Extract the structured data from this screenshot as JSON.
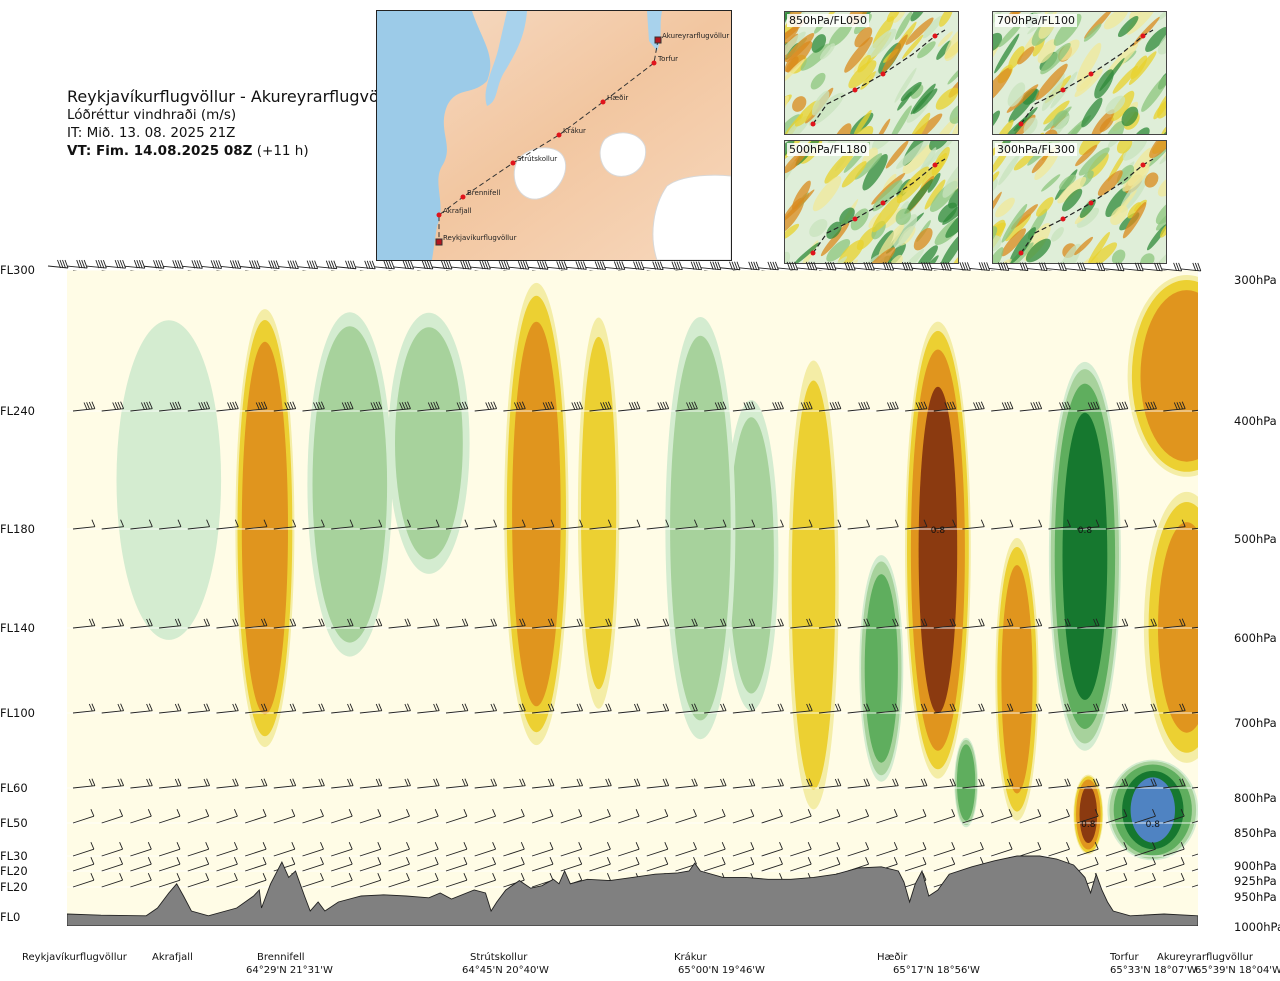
{
  "header": {
    "title": "Reykjavíkurflugvöllur - Akureyrarflugvöllur",
    "subtitle": "Lóðréttur vindhraði (m/s)",
    "init_time": "IT: Mið. 13. 08. 2025 21Z",
    "valid_prefix": "VT: Fim. 14.08.2025 08Z",
    "valid_suffix": " (+11 h)"
  },
  "route_map": {
    "waypoints": [
      "Akureyrarflugvöllur",
      "Torfur",
      "Hæðir",
      "Krákur",
      "Strútskollur",
      "Brennifell",
      "Akrafjall",
      "Reykjavíkurflugvöllur"
    ]
  },
  "mini_maps": [
    {
      "label": "850hPa/FL050"
    },
    {
      "label": "700hPa/FL100"
    },
    {
      "label": "500hPa/FL180"
    },
    {
      "label": "300hPa/FL300"
    }
  ],
  "colors": {
    "strong_down": "#8b3a10",
    "moderate_down": "#e0951e",
    "weak_down": "#ecd032",
    "slight_down": "#f4eda6",
    "neutral": "#fffce6",
    "slight_up": "#d4ecd0",
    "weak_up": "#a7d29c",
    "moderate_up": "#5fae5e",
    "strong_up": "#16782f",
    "very_strong_up": "#4f83c2",
    "terrain": "#808080"
  },
  "chart_data": {
    "type": "heatmap",
    "title": "Reykjavíkurflugvöllur - Akureyrarflugvöllur",
    "variable": "Lóðréttur vindhraði (m/s)",
    "y_axis_left": {
      "ticks": [
        "FL300",
        "FL240",
        "FL180",
        "FL140",
        "FL100",
        "FL60",
        "FL50",
        "FL30",
        "FL20",
        "FL20",
        "FL0"
      ]
    },
    "y_axis_right": {
      "ticks": [
        "300hPa",
        "400hPa",
        "500hPa",
        "600hPa",
        "700hPa",
        "800hPa",
        "850hPa",
        "900hPa",
        "925hPa",
        "950hPa",
        "1000hPa"
      ]
    },
    "x_axis": {
      "locations": [
        {
          "name": "Reykjavíkurflugvöllur",
          "coord": ""
        },
        {
          "name": "Akrafjall",
          "coord": ""
        },
        {
          "name": "Brennifell",
          "coord": "64°29'N 21°31'W"
        },
        {
          "name": "Strútskollur",
          "coord": "64°45'N 20°40'W"
        },
        {
          "name": "Krákur",
          "coord": "65°00'N 19°46'W"
        },
        {
          "name": "Hæðir",
          "coord": "65°17'N 18°56'W"
        },
        {
          "name": "Torfur",
          "coord": "65°33'N 18°07'W"
        },
        {
          "name": "Akureyrarflugvöllur",
          "coord": "65°39'N 18°04'W"
        }
      ]
    },
    "distance_range": [
      0,
      1
    ],
    "pressure_range_hPa": [
      300,
      1000
    ],
    "contour_levels": [
      -0.8,
      -0.4,
      -0.2,
      -0.1,
      0.1,
      0.2,
      0.4,
      0.8,
      1.2
    ],
    "annotations": [
      "0.8",
      "0.8",
      "0.8",
      "0.8"
    ],
    "features": [
      {
        "sign": -1,
        "x": 0.175,
        "ptop": 320,
        "pbot": 760,
        "width": 0.02,
        "peak": 0.7
      },
      {
        "sign": 1,
        "x": 0.25,
        "ptop": 320,
        "pbot": 650,
        "width": 0.03,
        "peak": 0.35
      },
      {
        "sign": 1,
        "x": 0.09,
        "ptop": 320,
        "pbot": 640,
        "width": 0.04,
        "peak": 0.12
      },
      {
        "sign": 1,
        "x": 0.32,
        "ptop": 320,
        "pbot": 560,
        "width": 0.03,
        "peak": 0.2
      },
      {
        "sign": -1,
        "x": 0.415,
        "ptop": 300,
        "pbot": 760,
        "width": 0.022,
        "peak": 0.6
      },
      {
        "sign": -1,
        "x": 0.47,
        "ptop": 320,
        "pbot": 720,
        "width": 0.015,
        "peak": 0.25
      },
      {
        "sign": 1,
        "x": 0.56,
        "ptop": 320,
        "pbot": 760,
        "width": 0.025,
        "peak": 0.3
      },
      {
        "sign": -1,
        "x": 0.66,
        "ptop": 350,
        "pbot": 860,
        "width": 0.018,
        "peak": 0.3
      },
      {
        "sign": 1,
        "x": 0.605,
        "ptop": 380,
        "pbot": 720,
        "width": 0.02,
        "peak": 0.2
      },
      {
        "sign": 1,
        "x": 0.72,
        "ptop": 520,
        "pbot": 800,
        "width": 0.015,
        "peak": 0.6
      },
      {
        "sign": -1,
        "x": 0.77,
        "ptop": 330,
        "pbot": 800,
        "width": 0.022,
        "peak": 0.9
      },
      {
        "sign": 1,
        "x": 0.795,
        "ptop": 730,
        "pbot": 860,
        "width": 0.008,
        "peak": 0.7
      },
      {
        "sign": -1,
        "x": 0.84,
        "ptop": 500,
        "pbot": 860,
        "width": 0.015,
        "peak": 0.5
      },
      {
        "sign": 1,
        "x": 0.9,
        "ptop": 360,
        "pbot": 760,
        "width": 0.024,
        "peak": 1.0
      },
      {
        "sign": -1,
        "x": 0.903,
        "ptop": 780,
        "pbot": 900,
        "width": 0.01,
        "peak": 0.9
      },
      {
        "sign": 1,
        "x": 0.96,
        "ptop": 760,
        "pbot": 910,
        "width": 0.03,
        "peak": 1.2
      },
      {
        "sign": -1,
        "x": 0.99,
        "ptop": 300,
        "pbot": 460,
        "width": 0.04,
        "peak": 0.7
      },
      {
        "sign": -1,
        "x": 0.99,
        "ptop": 460,
        "pbot": 780,
        "width": 0.03,
        "peak": 0.4
      }
    ],
    "terrain_profile": [
      [
        0.0,
        995
      ],
      [
        0.03,
        997
      ],
      [
        0.07,
        998
      ],
      [
        0.08,
        985
      ],
      [
        0.09,
        960
      ],
      [
        0.097,
        945
      ],
      [
        0.103,
        965
      ],
      [
        0.11,
        990
      ],
      [
        0.125,
        998
      ],
      [
        0.15,
        985
      ],
      [
        0.165,
        965
      ],
      [
        0.17,
        955
      ],
      [
        0.172,
        985
      ],
      [
        0.18,
        945
      ],
      [
        0.19,
        910
      ],
      [
        0.196,
        935
      ],
      [
        0.202,
        925
      ],
      [
        0.21,
        965
      ],
      [
        0.215,
        990
      ],
      [
        0.222,
        975
      ],
      [
        0.228,
        990
      ],
      [
        0.24,
        975
      ],
      [
        0.26,
        965
      ],
      [
        0.28,
        963
      ],
      [
        0.3,
        965
      ],
      [
        0.32,
        968
      ],
      [
        0.33,
        960
      ],
      [
        0.34,
        970
      ],
      [
        0.36,
        955
      ],
      [
        0.37,
        960
      ],
      [
        0.375,
        990
      ],
      [
        0.38,
        975
      ],
      [
        0.388,
        955
      ],
      [
        0.4,
        940
      ],
      [
        0.41,
        952
      ],
      [
        0.42,
        948
      ],
      [
        0.43,
        938
      ],
      [
        0.435,
        945
      ],
      [
        0.44,
        925
      ],
      [
        0.445,
        945
      ],
      [
        0.46,
        938
      ],
      [
        0.48,
        940
      ],
      [
        0.5,
        935
      ],
      [
        0.52,
        930
      ],
      [
        0.54,
        928
      ],
      [
        0.55,
        925
      ],
      [
        0.555,
        912
      ],
      [
        0.56,
        925
      ],
      [
        0.58,
        935
      ],
      [
        0.6,
        935
      ],
      [
        0.62,
        938
      ],
      [
        0.64,
        938
      ],
      [
        0.66,
        935
      ],
      [
        0.68,
        930
      ],
      [
        0.7,
        920
      ],
      [
        0.72,
        918
      ],
      [
        0.735,
        925
      ],
      [
        0.74,
        942
      ],
      [
        0.745,
        975
      ],
      [
        0.75,
        945
      ],
      [
        0.756,
        925
      ],
      [
        0.762,
        965
      ],
      [
        0.77,
        955
      ],
      [
        0.78,
        930
      ],
      [
        0.8,
        918
      ],
      [
        0.82,
        908
      ],
      [
        0.84,
        900
      ],
      [
        0.86,
        900
      ],
      [
        0.875,
        905
      ],
      [
        0.89,
        915
      ],
      [
        0.9,
        935
      ],
      [
        0.905,
        960
      ],
      [
        0.91,
        930
      ],
      [
        0.915,
        955
      ],
      [
        0.92,
        975
      ],
      [
        0.925,
        990
      ],
      [
        0.94,
        998
      ],
      [
        0.97,
        995
      ],
      [
        1.0,
        998
      ]
    ],
    "wind_levels_hPa": [
      300,
      400,
      500,
      600,
      700,
      800,
      850,
      900,
      925,
      950
    ]
  }
}
